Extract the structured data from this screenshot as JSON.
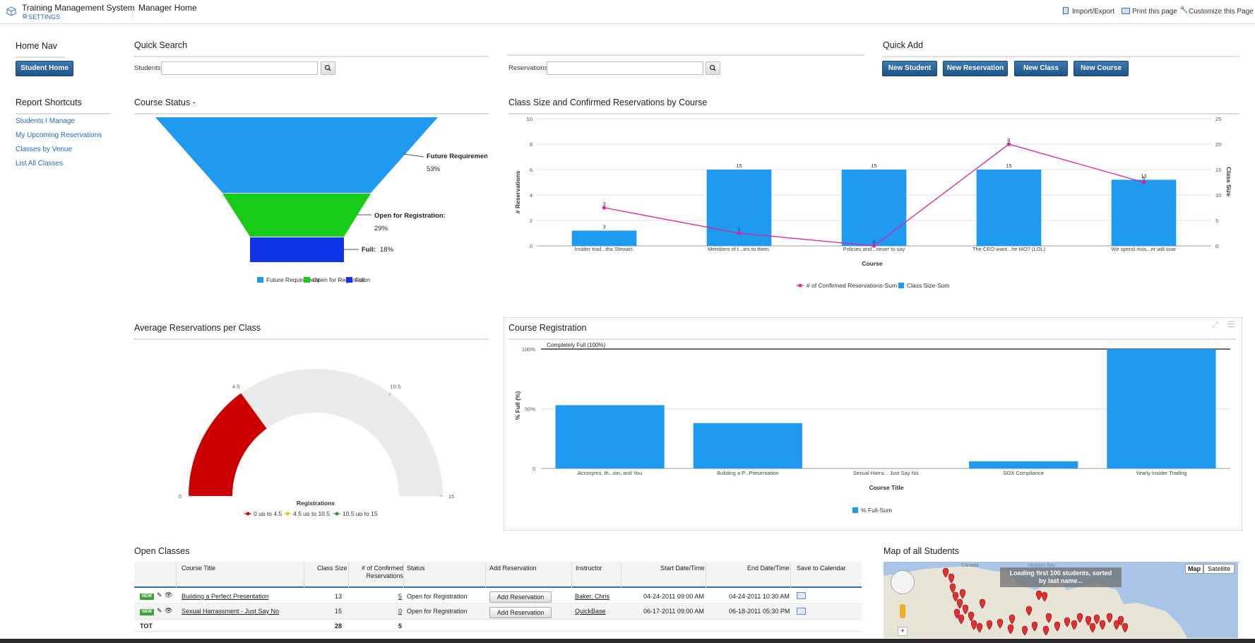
{
  "header": {
    "app_title": "Training Management System",
    "settings": "SETTINGS",
    "page_title": "Manager Home",
    "import_export": "Import/Export",
    "print": "Print this page",
    "customize": "Customize this Page"
  },
  "home_nav": {
    "title": "Home Nav",
    "student_home": "Student Home"
  },
  "quick_search": {
    "title": "Quick Search",
    "students_label": "Students",
    "reservations_label": "Reservations",
    "students_value": "",
    "reservations_value": ""
  },
  "quick_add": {
    "title": "Quick Add",
    "buttons": [
      "New Student",
      "New Reservation",
      "New Class",
      "New Course"
    ]
  },
  "report_shortcuts": {
    "title": "Report Shortcuts",
    "links": [
      "Students I Manage",
      "My Upcoming Reservations",
      "Classes by Venue",
      "List All Classes"
    ]
  },
  "course_status": {
    "title": "Course Status -",
    "funnel_labels": [
      {
        "name": "Future Requirement:",
        "pct": "53%"
      },
      {
        "name": "Open for Registration:",
        "pct": "29%"
      },
      {
        "name": "Full:",
        "pct": "18%"
      }
    ],
    "legend": [
      "Future Requirement",
      "Open for Registration",
      "Full"
    ],
    "colors": [
      "#1e9af0",
      "#18cc18",
      "#0f34e8"
    ]
  },
  "class_size_chart": {
    "title": "Class Size and Confirmed Reservations by Course",
    "xlabel": "Course",
    "ylabel_left": "# Reservations",
    "ylabel_right": "Class Size",
    "left_ticks": [
      "10",
      "8",
      "6",
      "4",
      "2",
      "0"
    ],
    "right_ticks": [
      "25",
      "20",
      "15",
      "10",
      "5",
      "0"
    ],
    "legend_line": "# of Confirmed Reservations-Sum",
    "legend_bar": "Class Size-Sum"
  },
  "avg_reservations": {
    "title": "Average Reservations per Class",
    "ticks": [
      "0",
      "4.5",
      "10.5",
      "15"
    ],
    "axis_label": "Registrations",
    "legend": [
      "0 up to 4.5",
      "4.5 up to 10.5",
      "10.5 up to 15"
    ],
    "legend_colors": [
      "#c00",
      "#f0c020",
      "#2a9a2a"
    ]
  },
  "course_registration": {
    "title": "Course Registration",
    "plotline_label": "Completely Full (100%)",
    "ylabel": "% Full (%)",
    "xlabel": "Course Title",
    "y_ticks": [
      "100%",
      "50%",
      "0"
    ],
    "legend": "% Full-Sum"
  },
  "chart_data": [
    {
      "type": "bar",
      "title": "Class Size and Confirmed Reservations by Course",
      "categories": [
        "Insider trad...tha Stewart.",
        "Members of t...ies to them.",
        "Policies and...never to say",
        "The CEO want...he MO? (LOL)",
        "We spend mos...er will soar"
      ],
      "xlabel": "Course",
      "ylim": [
        0,
        10
      ],
      "y2lim": [
        0,
        25
      ],
      "series": [
        {
          "name": "Class Size-Sum",
          "type": "bar",
          "axis": "right",
          "values": [
            3,
            15,
            15,
            15,
            13
          ],
          "color": "#1e9af0"
        },
        {
          "name": "# of Confirmed Reservations-Sum",
          "type": "line",
          "axis": "left",
          "values": [
            3,
            1,
            0,
            8,
            5
          ],
          "color": "#e020a0"
        }
      ]
    },
    {
      "type": "bar",
      "title": "Course Registration",
      "categories": [
        "Acronyms, th...ion, and You",
        "Building a P...Presentation",
        "Sexual Harra... Just Say No",
        "SOX Compliance",
        "Yearly Insider Trading"
      ],
      "xlabel": "Course Title",
      "ylabel": "% Full (%)",
      "ylim": [
        0,
        100
      ],
      "series": [
        {
          "name": "% Full-Sum",
          "values": [
            53,
            38,
            0,
            6,
            100
          ],
          "color": "#1e9af0"
        }
      ]
    },
    {
      "type": "gauge",
      "title": "Average Reservations per Class",
      "range": [
        0,
        15
      ],
      "value": 4.5,
      "bands": [
        {
          "from": 0,
          "to": 4.5
        },
        {
          "from": 4.5,
          "to": 10.5
        },
        {
          "from": 10.5,
          "to": 15
        }
      ]
    },
    {
      "type": "funnel",
      "title": "Course Status -",
      "categories": [
        "Future Requirement",
        "Open for Registration",
        "Full"
      ],
      "values": [
        53,
        29,
        18
      ]
    }
  ],
  "open_classes": {
    "title": "Open Classes",
    "headers": [
      "Course Title",
      "Class Size",
      "# of Confirmed Reservations",
      "Status",
      "Add Reservation",
      "Instructor",
      "Start Date/Time",
      "End Date/Time",
      "Save to Calendar"
    ],
    "new_badge": "NEW",
    "rows": [
      {
        "title": "Building a Perfect Presentation",
        "size": "13",
        "confirmed": "5",
        "status": "Open for Registration",
        "add": "Add Reservation",
        "instructor": "Baker, Chris",
        "start": "04-24-2011 09:00 AM",
        "end": "04-24-2011 10:30 AM"
      },
      {
        "title": "Sexual Harrassment - Just Say No",
        "size": "15",
        "confirmed": "0",
        "status": "Open for Registration",
        "add": "Add Reservation",
        "instructor": "QuickBase",
        "start": "06-17-2011 09:00 AM",
        "end": "06-18-2011 05:30 PM"
      }
    ],
    "total_label": "TOT",
    "total_size": "28",
    "total_confirmed": "5"
  },
  "map": {
    "title": "Map of all Students",
    "btn_map": "Map",
    "btn_satellite": "Satellite",
    "loading": "Loading first 100 students, sorted by last name...",
    "place_canada": "Canada",
    "place_hudson": "Hudson Bay"
  }
}
